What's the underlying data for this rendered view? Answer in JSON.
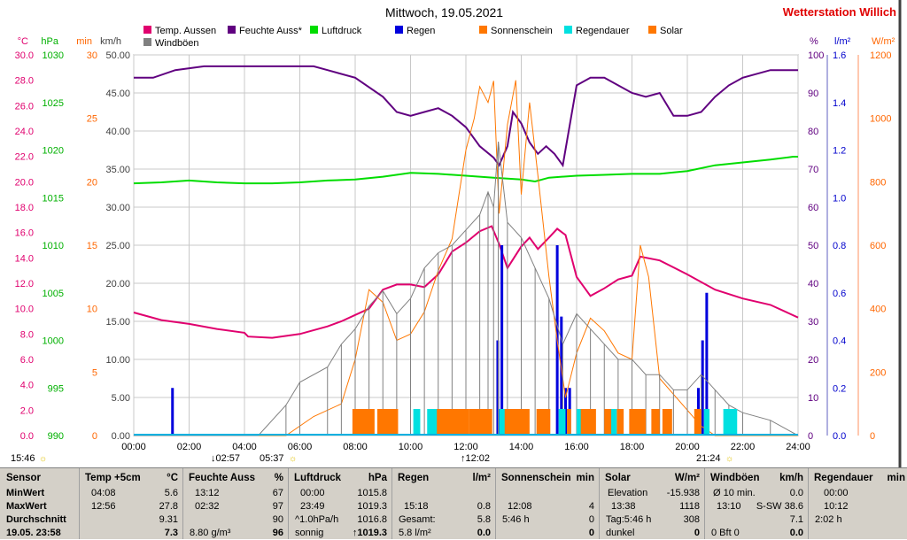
{
  "chart_data": {
    "type": "line",
    "title": "Mittwoch, 19.05.2021",
    "brand": "Wetterstation Willich",
    "x_ticks": [
      "00:00",
      "02:00",
      "04:00",
      "06:00",
      "08:00",
      "10:00",
      "12:00",
      "14:00",
      "16:00",
      "18:00",
      "20:00",
      "22:00",
      "24:00"
    ],
    "x_range": [
      0,
      24
    ],
    "axes_left": [
      {
        "unit": "°C",
        "color": "#e0006e",
        "ticks": [
          "0.0",
          "2.0",
          "4.0",
          "6.0",
          "8.0",
          "10.0",
          "12.0",
          "14.0",
          "16.0",
          "18.0",
          "20.0",
          "22.0",
          "24.0",
          "26.0",
          "28.0",
          "30.0"
        ],
        "range": [
          0,
          30
        ]
      },
      {
        "unit": "hPa",
        "color": "#00b000",
        "ticks": [
          "990",
          "995",
          "1000",
          "1005",
          "1010",
          "1015",
          "1020",
          "1025",
          "1030"
        ],
        "range": [
          990,
          1030
        ]
      },
      {
        "unit": "min",
        "color": "#ff6600",
        "ticks": [
          "0",
          "5",
          "10",
          "15",
          "20",
          "25",
          "30"
        ],
        "range": [
          0,
          30
        ]
      },
      {
        "unit": "km/h",
        "color": "#404040",
        "ticks": [
          "0.00",
          "5.00",
          "10.00",
          "15.00",
          "20.00",
          "25.00",
          "30.00",
          "35.00",
          "40.00",
          "45.00",
          "50.00"
        ],
        "range": [
          0,
          50
        ]
      }
    ],
    "axes_right": [
      {
        "unit": "%",
        "color": "#600080",
        "ticks": [
          "0",
          "10",
          "20",
          "30",
          "40",
          "50",
          "60",
          "70",
          "80",
          "90",
          "100"
        ],
        "range": [
          0,
          100
        ]
      },
      {
        "unit": "l/m²",
        "color": "#0000cc",
        "ticks": [
          "0.0",
          "0.2",
          "0.4",
          "0.6",
          "0.8",
          "1.0",
          "1.2",
          "1.4",
          "1.6"
        ],
        "range": [
          0,
          1.6
        ]
      },
      {
        "unit": "W/m²",
        "color": "#ff6600",
        "ticks": [
          "0",
          "200",
          "400",
          "600",
          "800",
          "1000",
          "1200"
        ],
        "range": [
          0,
          1200
        ]
      }
    ],
    "legend": [
      {
        "name": "Temp. Aussen",
        "color": "#e0006e"
      },
      {
        "name": "Feuchte Auss*",
        "color": "#600080"
      },
      {
        "name": "Luftdruck",
        "color": "#00dd00"
      },
      {
        "name": "Regen",
        "color": "#0000dd"
      },
      {
        "name": "Sonnenschein",
        "color": "#ff7700"
      },
      {
        "name": "Regendauer",
        "color": "#00e0e0"
      },
      {
        "name": "Solar",
        "color": "#ff7700"
      },
      {
        "name": "Windböen",
        "color": "#808080"
      }
    ],
    "series": [
      {
        "name": "Temp. Aussen",
        "color": "#e0006e",
        "axis": "°C",
        "x": [
          0,
          1,
          2,
          3,
          4,
          4.13,
          5,
          6,
          7,
          7.5,
          8,
          8.5,
          9,
          9.5,
          10,
          10.5,
          11,
          11.5,
          12,
          12.5,
          12.93,
          13.2,
          13.5,
          14,
          14.3,
          14.6,
          15,
          15.3,
          15.6,
          16,
          16.5,
          17,
          17.5,
          18,
          18.3,
          19,
          20,
          21,
          22,
          23,
          24
        ],
        "y": [
          9.7,
          9.1,
          8.8,
          8.4,
          8.1,
          7.8,
          7.7,
          8.0,
          8.6,
          9.0,
          9.5,
          10.0,
          11.5,
          11.9,
          11.9,
          11.7,
          12.7,
          14.5,
          15.2,
          16.1,
          16.5,
          15.1,
          13.2,
          14.9,
          15.6,
          14.7,
          15.6,
          16.3,
          15.8,
          12.5,
          11.0,
          11.6,
          12.3,
          12.6,
          14.1,
          13.8,
          12.7,
          11.5,
          10.8,
          10.3,
          9.3
        ]
      },
      {
        "name": "Feuchte Auss*",
        "color": "#600080",
        "axis": "%",
        "x": [
          0,
          0.7,
          1.5,
          2.54,
          3,
          4,
          5,
          6,
          6.5,
          7,
          8,
          9,
          9.5,
          10,
          10.5,
          11,
          11.5,
          12,
          12.5,
          13,
          13.2,
          13.5,
          13.7,
          14,
          14.3,
          14.6,
          14.9,
          15.2,
          15.5,
          16,
          16.5,
          17,
          17.5,
          18,
          18.5,
          19,
          19.5,
          20,
          20.5,
          21,
          21.5,
          22,
          23,
          24
        ],
        "y": [
          94,
          94,
          96,
          97,
          97,
          97,
          97,
          97,
          97,
          96,
          94,
          89,
          85,
          84,
          85,
          86,
          84,
          81,
          76,
          73,
          71,
          76,
          85,
          82,
          77,
          74,
          76,
          74,
          71,
          92,
          94,
          94,
          92,
          90,
          89,
          90,
          84,
          84,
          85,
          89,
          92,
          94,
          96,
          96
        ]
      },
      {
        "name": "Luftdruck",
        "color": "#00dd00",
        "axis": "hPa",
        "x": [
          0,
          1,
          2,
          3,
          4,
          5,
          6,
          7,
          8,
          9,
          10,
          11,
          12,
          13,
          14,
          14.5,
          15,
          16,
          17,
          18,
          19,
          20,
          21,
          22,
          23,
          23.82,
          24
        ],
        "y": [
          1016.5,
          1016.6,
          1016.8,
          1016.6,
          1016.5,
          1016.5,
          1016.6,
          1016.8,
          1016.9,
          1017.2,
          1017.6,
          1017.5,
          1017.3,
          1017.1,
          1016.9,
          1016.7,
          1017.1,
          1017.3,
          1017.4,
          1017.5,
          1017.5,
          1017.8,
          1018.4,
          1018.7,
          1019.0,
          1019.3,
          1019.3
        ]
      },
      {
        "name": "Regen",
        "color": "#0000dd",
        "axis": "l/m²",
        "x": [
          1.4,
          13.15,
          13.3,
          15.3,
          15.45,
          15.6,
          15.75,
          20.4,
          20.55,
          20.7
        ],
        "y": [
          0.2,
          0.4,
          0.8,
          0.8,
          0.5,
          0.2,
          0.2,
          0.2,
          0.4,
          0.6
        ]
      },
      {
        "name": "Solar",
        "color": "#ff7700",
        "axis": "W/m²",
        "x": [
          0,
          5.5,
          6.5,
          7.5,
          8,
          8.5,
          9,
          9.5,
          10,
          10.5,
          11,
          11.5,
          12,
          12.3,
          12.5,
          12.8,
          13,
          13.2,
          13.5,
          13.8,
          14,
          14.3,
          14.6,
          15,
          15.3,
          15.6,
          16,
          16.5,
          17,
          17.5,
          18,
          18.3,
          18.6,
          19,
          19.5,
          20,
          20.5,
          21,
          24
        ],
        "y": [
          0,
          0,
          60,
          100,
          240,
          460,
          420,
          300,
          320,
          390,
          520,
          620,
          900,
          1000,
          1100,
          1050,
          1118,
          700,
          980,
          1120,
          760,
          1050,
          820,
          500,
          300,
          120,
          260,
          370,
          330,
          260,
          240,
          600,
          500,
          180,
          130,
          80,
          30,
          0,
          0
        ]
      },
      {
        "name": "Windböen",
        "color": "#808080",
        "axis": "km/h",
        "x": [
          0,
          4.5,
          5.5,
          6,
          7,
          7.5,
          8,
          8.5,
          9,
          9.5,
          10,
          10.5,
          11,
          11.5,
          12,
          12.5,
          12.8,
          13,
          13.17,
          13.5,
          14,
          14.5,
          15,
          15.5,
          16,
          16.5,
          17,
          17.5,
          18,
          18.5,
          19,
          19.5,
          20,
          20.5,
          21,
          21.5,
          22,
          23,
          24
        ],
        "y": [
          0,
          0,
          4,
          7,
          9,
          12,
          14,
          17,
          19,
          16,
          18,
          22,
          24,
          25,
          27,
          29,
          32,
          30,
          38.6,
          28,
          26,
          22,
          18,
          12,
          16,
          14,
          12,
          10,
          10,
          8,
          8,
          6,
          6,
          8,
          6,
          4,
          3,
          2,
          0
        ]
      },
      {
        "name": "Sonnenschein",
        "color": "#ff7700",
        "axis": "min",
        "intervals": [
          [
            7.9,
            8.7
          ],
          [
            8.8,
            9.55
          ],
          [
            10.9,
            12.1
          ],
          [
            12.1,
            12.95
          ],
          [
            13.35,
            14.3
          ],
          [
            14.55,
            15.05
          ],
          [
            15.65,
            15.8
          ],
          [
            16.1,
            16.7
          ],
          [
            17.0,
            17.3
          ],
          [
            17.45,
            17.7
          ],
          [
            17.9,
            18.5
          ],
          [
            18.7,
            19.0
          ],
          [
            19.1,
            19.45
          ],
          [
            20.25,
            20.5
          ]
        ]
      },
      {
        "name": "Regendauer",
        "color": "#00e0e0",
        "axis": "min",
        "intervals": [
          [
            10.1,
            10.35
          ],
          [
            10.6,
            10.95
          ],
          [
            13.2,
            13.4
          ],
          [
            15.35,
            15.6
          ],
          [
            16.0,
            16.15
          ],
          [
            17.25,
            17.45
          ],
          [
            20.6,
            20.8
          ],
          [
            21.3,
            21.8
          ]
        ]
      }
    ],
    "events": {
      "sunrise": "05:37",
      "sunset": "21:24",
      "solar_noon": "↑12:02",
      "moonset": "↓02:57",
      "moonrise": "15:46",
      "zenith_marker": "☼"
    }
  },
  "table": {
    "sensor": {
      "head": "Sensor",
      "rows": [
        "MinWert",
        "MaxWert",
        "Durchschnitt",
        "19.05. 23:58"
      ]
    },
    "temp": {
      "head": "Temp +5cm",
      "unit": "°C",
      "rows": [
        [
          "04:08",
          "5.6"
        ],
        [
          "12:56",
          "27.8"
        ],
        [
          "",
          "9.31"
        ],
        [
          "",
          "7.3"
        ]
      ]
    },
    "feuchte": {
      "head": "Feuchte Auss",
      "unit": "%",
      "rows": [
        [
          "13:12",
          "67"
        ],
        [
          "02:32",
          "97"
        ],
        [
          "",
          "90"
        ],
        [
          "8.80 g/m³",
          "96"
        ]
      ]
    },
    "luftdruck": {
      "head": "Luftdruck",
      "unit": "hPa",
      "rows": [
        [
          "00:00",
          "1015.8"
        ],
        [
          "23:49",
          "1019.3"
        ],
        [
          "^1.0hPa/h",
          "1016.8"
        ],
        [
          "sonnig",
          "↑1019.3"
        ]
      ]
    },
    "regen": {
      "head": "Regen",
      "unit": "l/m²",
      "rows": [
        [
          "",
          ""
        ],
        [
          "15:18",
          "0.8"
        ],
        [
          "Gesamt:",
          "5.8"
        ],
        [
          "5.8 l/m²",
          "0.0"
        ]
      ]
    },
    "sonne": {
      "head": "Sonnenschein",
      "unit": "min",
      "rows": [
        [
          "",
          ""
        ],
        [
          "12:08",
          "4"
        ],
        [
          "5:46 h",
          "0"
        ],
        [
          "",
          "0"
        ]
      ]
    },
    "solar": {
      "head": "Solar",
      "unit": "W/m²",
      "rows": [
        [
          "Elevation",
          "-15.938"
        ],
        [
          "13:38",
          "1118"
        ],
        [
          "Tag:5:46 h",
          "308"
        ],
        [
          "dunkel",
          "0"
        ]
      ]
    },
    "wind": {
      "head": "Windböen",
      "unit": "km/h",
      "rows": [
        [
          "Ø 10 min.",
          "0.0"
        ],
        [
          "13:10",
          "S-SW 38.6"
        ],
        [
          "",
          "7.1"
        ],
        [
          "0 Bft 0",
          "0.0"
        ]
      ]
    },
    "regendauer": {
      "head": "Regendauer",
      "unit": "min",
      "rows": [
        [
          "00:00",
          ""
        ],
        [
          "10:12",
          ""
        ],
        [
          "2:02 h",
          ""
        ],
        [
          "",
          ""
        ]
      ]
    }
  }
}
